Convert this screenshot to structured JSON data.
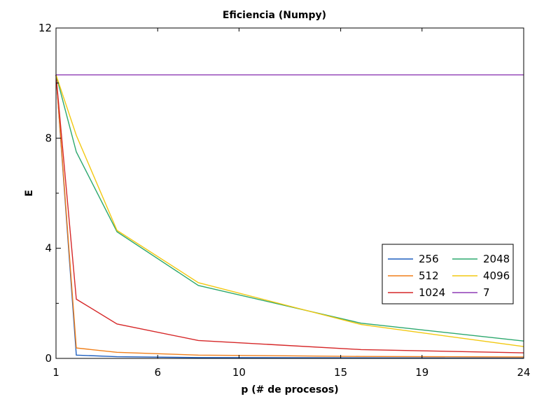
{
  "chart_data": {
    "type": "line",
    "title": "Eficiencia (Numpy)",
    "xlabel": "p (# de procesos)",
    "ylabel": "E",
    "xlim": [
      1,
      24
    ],
    "ylim": [
      0,
      12
    ],
    "xticks": [
      1,
      6,
      10,
      15,
      19,
      24
    ],
    "xtick_labels": [
      "1",
      "6",
      "10",
      "15",
      "19",
      "24"
    ],
    "yticks": [
      0,
      4,
      8,
      12
    ],
    "ytick_labels": [
      "0",
      "4",
      "8",
      "12"
    ],
    "grid": false,
    "legend_position": "right",
    "series": [
      {
        "name": "256",
        "color": "#1f5fbf",
        "x": [
          1,
          2,
          4,
          8,
          16,
          24
        ],
        "y": [
          10.3,
          0.12,
          0.06,
          0.03,
          0.02,
          0.01
        ]
      },
      {
        "name": "512",
        "color": "#f07f1a",
        "x": [
          1,
          2,
          4,
          8,
          16,
          24
        ],
        "y": [
          10.3,
          0.38,
          0.22,
          0.12,
          0.07,
          0.05
        ]
      },
      {
        "name": "1024",
        "color": "#d62728",
        "x": [
          1,
          2,
          4,
          8,
          16,
          24
        ],
        "y": [
          10.3,
          2.15,
          1.25,
          0.65,
          0.32,
          0.2
        ]
      },
      {
        "name": "2048",
        "color": "#2ca86e",
        "x": [
          1,
          2,
          4,
          8,
          16,
          24
        ],
        "y": [
          10.3,
          7.5,
          4.6,
          2.65,
          1.28,
          0.63
        ]
      },
      {
        "name": "4096",
        "color": "#f2c811",
        "x": [
          1,
          2,
          4,
          8,
          16,
          24
        ],
        "y": [
          10.3,
          8.1,
          4.65,
          2.75,
          1.23,
          0.43
        ]
      },
      {
        "name": "7",
        "color": "#8e3bb5",
        "x": [
          1,
          24
        ],
        "y": [
          10.3,
          10.3
        ]
      }
    ]
  }
}
